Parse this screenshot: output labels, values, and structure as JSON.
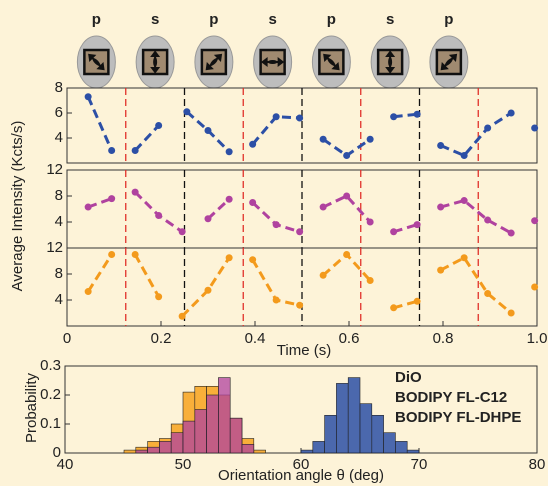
{
  "header": {
    "labels": [
      "p",
      "s",
      "p",
      "s",
      "p",
      "s",
      "p"
    ]
  },
  "chart_data": [
    {
      "type": "line",
      "xlim": [
        0,
        1
      ],
      "ylim": [
        2,
        8
      ],
      "yticks": [
        4,
        6,
        8
      ],
      "boundaries": {
        "red": [
          0.125,
          0.375,
          0.625,
          0.875
        ],
        "black": [
          0.25,
          0.5,
          0.75
        ]
      },
      "x": [
        0.045,
        0.095,
        null,
        0.145,
        0.195,
        null,
        0.255,
        0.3,
        0.345,
        null,
        0.395,
        0.445,
        0.495,
        null,
        0.545,
        0.595,
        0.645,
        null,
        0.695,
        0.745,
        null,
        0.795,
        0.845,
        0.895,
        0.945,
        null,
        0.995
      ],
      "series": [
        {
          "color": "#2c4fa6",
          "values": [
            7.3,
            3.0,
            null,
            3.0,
            5.0,
            null,
            6.1,
            4.6,
            2.9,
            null,
            3.5,
            5.7,
            5.6,
            null,
            3.9,
            2.6,
            3.9,
            null,
            5.7,
            5.9,
            null,
            3.4,
            2.6,
            4.8,
            6.0,
            null,
            4.8
          ]
        }
      ]
    },
    {
      "type": "line",
      "xlim": [
        0,
        1
      ],
      "ylim": [
        0,
        12
      ],
      "yticks": [
        4,
        8,
        12
      ],
      "ylabel": "Average Intensity (Kcts/s)",
      "boundaries": {
        "red": [
          0.125,
          0.375,
          0.625,
          0.875
        ],
        "black": [
          0.25,
          0.5,
          0.75
        ]
      },
      "x": [
        0.045,
        0.095,
        null,
        0.145,
        0.195,
        0.245,
        null,
        0.3,
        0.345,
        null,
        0.395,
        0.445,
        0.495,
        null,
        0.545,
        0.595,
        0.645,
        null,
        0.695,
        0.745,
        null,
        0.795,
        0.845,
        0.895,
        0.945,
        null,
        0.995
      ],
      "series": [
        {
          "color": "#b0429f",
          "values": [
            6.3,
            7.6,
            null,
            8.6,
            5.0,
            2.5,
            null,
            4.5,
            7.5,
            null,
            7.0,
            3.6,
            2.5,
            null,
            6.3,
            8.0,
            4.0,
            null,
            2.5,
            3.6,
            null,
            6.3,
            7.3,
            4.3,
            2.3,
            null,
            4.2
          ]
        }
      ]
    },
    {
      "type": "line",
      "xlim": [
        0,
        1
      ],
      "ylim": [
        0,
        12
      ],
      "yticks": [
        4,
        8,
        12
      ],
      "xlabel": "Time (s)",
      "xticks": [
        0,
        0.2,
        0.4,
        0.6,
        0.8,
        {
          "value": 1,
          "label": "1.0"
        }
      ],
      "boundaries": {
        "red": [
          0.125,
          0.375,
          0.625,
          0.875
        ],
        "black": [
          0.25,
          0.5,
          0.75
        ]
      },
      "x": [
        0.045,
        0.095,
        null,
        0.145,
        0.195,
        null,
        0.245,
        0.3,
        0.345,
        null,
        0.395,
        0.445,
        0.495,
        null,
        0.545,
        0.595,
        0.645,
        null,
        0.695,
        0.745,
        null,
        0.795,
        0.845,
        0.895,
        0.945,
        null,
        0.995
      ],
      "series": [
        {
          "color": "#f39a1c",
          "values": [
            5.3,
            11.0,
            null,
            11.0,
            4.5,
            null,
            1.5,
            5.5,
            10.5,
            null,
            10.2,
            4.0,
            3.2,
            null,
            7.8,
            11.0,
            7.0,
            null,
            2.8,
            3.8,
            null,
            8.6,
            10.5,
            5.0,
            2.0,
            null,
            6.0
          ]
        }
      ]
    },
    {
      "type": "histogram",
      "xlabel": "Orientation angle θ (deg)",
      "ylabel": "Probability",
      "xlim": [
        40,
        80
      ],
      "xticks": [
        40,
        50,
        60,
        70,
        80
      ],
      "ylim": [
        0,
        0.3
      ],
      "yticks": [
        0,
        0.1,
        0.2,
        0.3
      ],
      "series": [
        {
          "name": "BODIPY FL-DHPE",
          "color": "#f7a21e",
          "bins": [
            45,
            46,
            47,
            48,
            49,
            50,
            51,
            52,
            53,
            54,
            55,
            56,
            57
          ],
          "values": [
            0.01,
            0.02,
            0.04,
            0.05,
            0.1,
            0.21,
            0.23,
            0.23,
            0.2,
            0.12,
            0.05,
            0.01
          ]
        },
        {
          "name": "BODIPY FL-C12",
          "color": "#b0429f",
          "bins": [
            46,
            47,
            48,
            49,
            50,
            51,
            52,
            53,
            54,
            55,
            56
          ],
          "values": [
            0.01,
            0.02,
            0.04,
            0.07,
            0.11,
            0.15,
            0.2,
            0.26,
            0.12,
            0.03
          ]
        },
        {
          "name": "DiO",
          "color": "#2c4fa6",
          "bins": [
            60,
            61,
            62,
            63,
            64,
            65,
            66,
            67,
            68,
            69,
            70
          ],
          "values": [
            0.01,
            0.04,
            0.13,
            0.24,
            0.26,
            0.17,
            0.13,
            0.07,
            0.04,
            0.01
          ]
        }
      ]
    }
  ]
}
